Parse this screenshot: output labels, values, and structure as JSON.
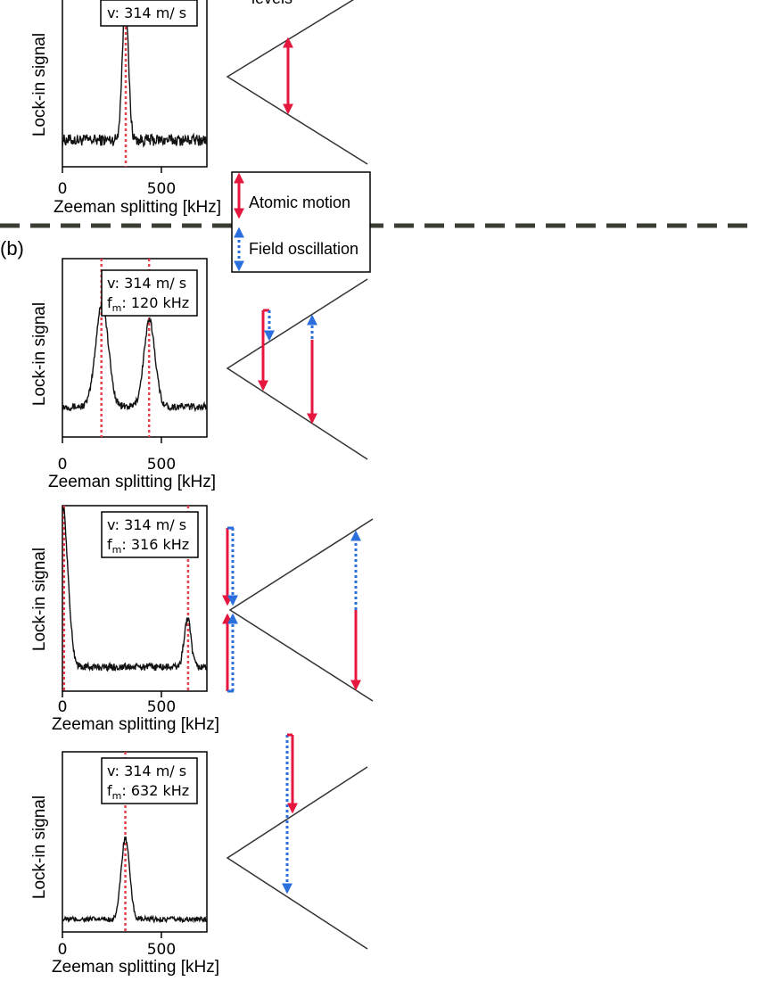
{
  "figure": {
    "panel_b_label": "(b)",
    "top_fragment_label": "levels",
    "legend": {
      "atomic_motion": "Atomic motion",
      "field_oscillation": "Field oscillation"
    },
    "colors": {
      "trace": "#111111",
      "guide_red": "#e8414b",
      "arrow_red": "#e5173f",
      "arrow_blue": "#2a6fdb",
      "divider": "#3a3d33"
    }
  },
  "chart_data": [
    {
      "id": "plot0",
      "type": "line",
      "title": "",
      "xlabel": "Zeeman splitting [kHz]",
      "ylabel": "Lock-in signal",
      "xlim": [
        0,
        730
      ],
      "xticks": [
        0,
        500
      ],
      "tick_labels": [
        "0",
        "500"
      ],
      "info_lines": [
        {
          "prefix": "v",
          "sub": "",
          "text": ": 314 m/ s"
        }
      ],
      "guides": [
        320
      ],
      "series": [
        {
          "name": "signal",
          "peaks": [
            {
              "center": 318,
              "width": 22,
              "height": 0.82
            }
          ],
          "baseline": 0.16,
          "noise": 0.035
        }
      ]
    },
    {
      "id": "plot1",
      "type": "line",
      "title": "",
      "xlabel": "Zeeman splitting [kHz]",
      "ylabel": "Lock-in signal",
      "xlim": [
        0,
        730
      ],
      "xticks": [
        0,
        500
      ],
      "tick_labels": [
        "0",
        "500"
      ],
      "info_lines": [
        {
          "prefix": "v",
          "sub": "",
          "text": ": 314 m/ s"
        },
        {
          "prefix": "f",
          "sub": "m",
          "text": ": 120 kHz"
        }
      ],
      "guides": [
        197,
        438
      ],
      "series": [
        {
          "name": "signal",
          "peaks": [
            {
              "center": 200,
              "width": 45,
              "height": 0.58
            },
            {
              "center": 440,
              "width": 40,
              "height": 0.48
            }
          ],
          "baseline": 0.17,
          "noise": 0.02
        }
      ]
    },
    {
      "id": "plot2",
      "type": "line",
      "title": "",
      "xlabel": "Zeeman splitting [kHz]",
      "ylabel": "Lock-in signal",
      "xlim": [
        0,
        730
      ],
      "xticks": [
        0,
        500
      ],
      "tick_labels": [
        "0",
        "500"
      ],
      "info_lines": [
        {
          "prefix": "v",
          "sub": "",
          "text": ": 314 m/ s"
        },
        {
          "prefix": "f",
          "sub": "m",
          "text": ": 316 kHz"
        }
      ],
      "guides": [
        8,
        635
      ],
      "series": [
        {
          "name": "signal",
          "peaks": [
            {
              "center": 0,
              "width": 38,
              "height": 0.88
            },
            {
              "center": 632,
              "width": 24,
              "height": 0.26
            }
          ],
          "baseline": 0.13,
          "noise": 0.02
        }
      ]
    },
    {
      "id": "plot3",
      "type": "line",
      "title": "",
      "xlabel": "Zeeman splitting [kHz]",
      "ylabel": "Lock-in signal",
      "xlim": [
        0,
        730
      ],
      "xticks": [
        0,
        500
      ],
      "tick_labels": [
        "0",
        "500"
      ],
      "info_lines": [
        {
          "prefix": "v",
          "sub": "",
          "text": ": 314 m/ s"
        },
        {
          "prefix": "f",
          "sub": "m",
          "text": ": 632 kHz"
        }
      ],
      "guides": [
        318
      ],
      "series": [
        {
          "name": "signal",
          "peaks": [
            {
              "center": 318,
              "width": 30,
              "height": 0.45
            }
          ],
          "baseline": 0.07,
          "noise": 0.015
        }
      ]
    }
  ]
}
